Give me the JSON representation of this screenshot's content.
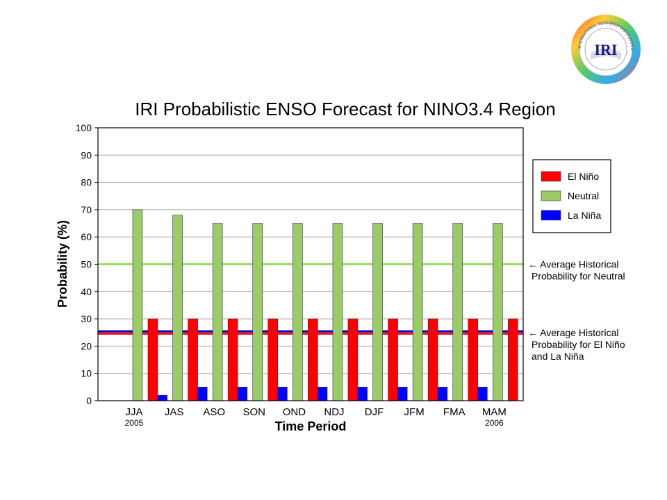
{
  "logo": {
    "text": "IRI",
    "ring_text": "INTERNATIONAL RESEARCH INSTITUTE FOR CLIMATE PREDICTION"
  },
  "chart_data": {
    "type": "bar",
    "title": "IRI Probabilistic ENSO Forecast for NINO3.4 Region",
    "xlabel": "Time Period",
    "ylabel": "Probability (%)",
    "ylim": [
      0,
      100
    ],
    "yticks": [
      0,
      10,
      20,
      30,
      40,
      50,
      60,
      70,
      80,
      90,
      100
    ],
    "grid": true,
    "categories": [
      "JJA",
      "JAS",
      "ASO",
      "SON",
      "OND",
      "NDJ",
      "DJF",
      "JFM",
      "FMA",
      "MAM"
    ],
    "year_labels": [
      {
        "category": "JJA",
        "text": "2005"
      },
      {
        "category": "MAM",
        "text": "2006"
      }
    ],
    "series": [
      {
        "name": "La Niña",
        "color": "#0000ff",
        "values": [
          0,
          2,
          5,
          5,
          5,
          5,
          5,
          5,
          5,
          5
        ]
      },
      {
        "name": "Neutral",
        "color": "#99cc66",
        "values": [
          70,
          68,
          65,
          65,
          65,
          65,
          65,
          65,
          65,
          65
        ]
      },
      {
        "name": "El Niño",
        "color": "#ff0000",
        "values": [
          30,
          30,
          30,
          30,
          30,
          30,
          30,
          30,
          30,
          30
        ]
      }
    ],
    "legend": {
      "placement": "right",
      "order": [
        "El Niño",
        "Neutral",
        "La Niña"
      ]
    },
    "reference_lines": [
      {
        "value": 50,
        "color": "#99dd66",
        "label_lines": [
          "← Average Historical",
          "Probability for Neutral"
        ]
      },
      {
        "value": 25,
        "color": "#ff0000",
        "second_color": "#0000cc",
        "label_lines": [
          "← Average Historical",
          "Probability for El Niño",
          "and La Niña"
        ]
      }
    ]
  }
}
